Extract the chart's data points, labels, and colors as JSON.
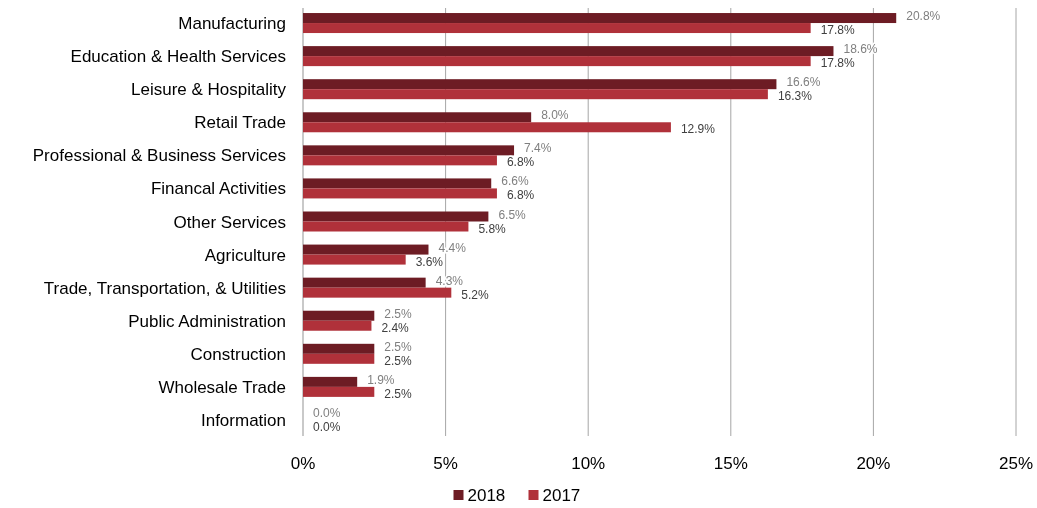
{
  "chart_data": {
    "type": "bar",
    "orientation": "horizontal",
    "categories": [
      "Manufacturing",
      "Education & Health Services",
      "Leisure & Hospitality",
      "Retail Trade",
      "Professional & Business Services",
      "Financal Activities",
      "Other Services",
      "Agriculture",
      "Trade, Transportation, & Utilities",
      "Public Administration",
      "Construction",
      "Wholesale Trade",
      "Information"
    ],
    "series": [
      {
        "name": "2018",
        "color": "#6d1c24",
        "values": [
          20.8,
          18.6,
          16.6,
          8.0,
          7.4,
          6.6,
          6.5,
          4.4,
          4.3,
          2.5,
          2.5,
          1.9,
          0.0
        ],
        "value_labels": [
          "20.8%",
          "18.6%",
          "16.6%",
          "8.0%",
          "7.4%",
          "6.6%",
          "6.5%",
          "4.4%",
          "4.3%",
          "2.5%",
          "2.5%",
          "1.9%",
          "0.0%"
        ]
      },
      {
        "name": "2017",
        "color": "#b0313a",
        "values": [
          17.8,
          17.8,
          16.3,
          12.9,
          6.8,
          6.8,
          5.8,
          3.6,
          5.2,
          2.4,
          2.5,
          2.5,
          0.0
        ],
        "value_labels": [
          "17.8%",
          "17.8%",
          "16.3%",
          "12.9%",
          "6.8%",
          "6.8%",
          "5.8%",
          "3.6%",
          "5.2%",
          "2.4%",
          "2.5%",
          "2.5%",
          "0.0%"
        ]
      }
    ],
    "xlim": [
      0,
      25
    ],
    "xticks": [
      {
        "value": 0,
        "label": "0%"
      },
      {
        "value": 5,
        "label": "5%"
      },
      {
        "value": 10,
        "label": "10%"
      },
      {
        "value": 15,
        "label": "15%"
      },
      {
        "value": 20,
        "label": "20%"
      },
      {
        "value": 25,
        "label": "25%"
      }
    ],
    "grid": "x",
    "legend": "bottom"
  }
}
